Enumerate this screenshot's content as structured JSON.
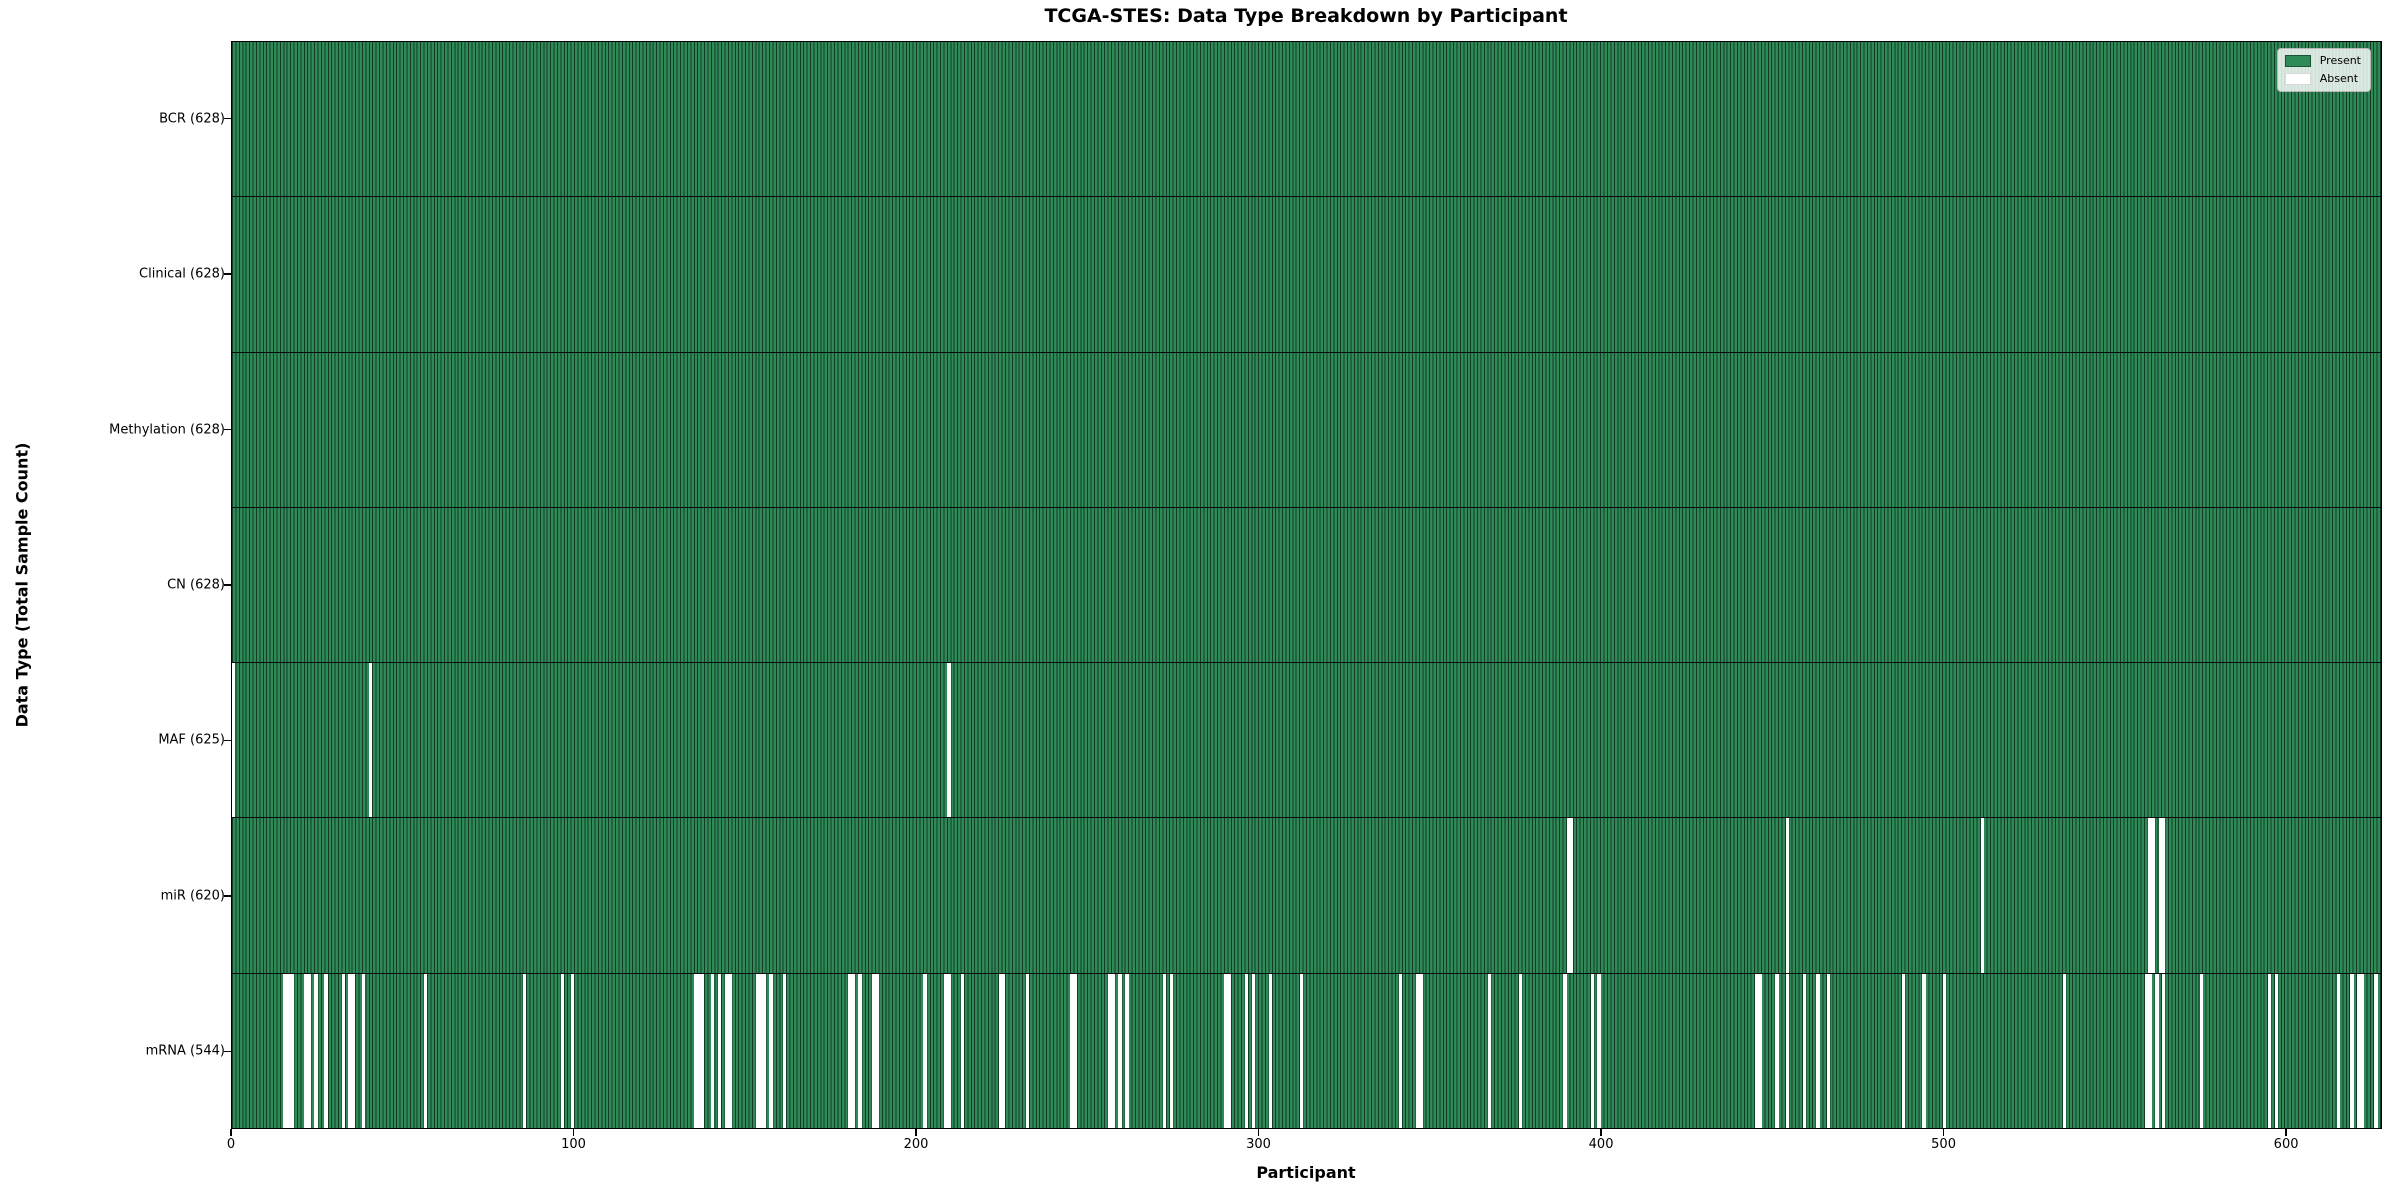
{
  "chart_data": {
    "type": "heatmap",
    "title": "TCGA-STES: Data Type Breakdown by Participant",
    "xlabel": "Participant",
    "ylabel": "Data Type (Total Sample Count)",
    "x_ticks": [
      0,
      100,
      200,
      300,
      400,
      500,
      600
    ],
    "x_range": [
      0,
      628
    ],
    "n_participants": 628,
    "grid": false,
    "legend_position": "upper-right",
    "colors": {
      "present": "#2E8B57",
      "bar_edge": "#123B26",
      "absent": "#FFFFFF",
      "background": "#FFFFFF",
      "text": "#000000"
    },
    "legend": [
      {
        "label": "Present",
        "color": "#2E8B57"
      },
      {
        "label": "Absent",
        "color": "#FFFFFF"
      }
    ],
    "rows": [
      {
        "label": "BCR (628)",
        "data_type": "BCR",
        "present_count": 628,
        "absent_participants": []
      },
      {
        "label": "Clinical (628)",
        "data_type": "Clinical",
        "present_count": 628,
        "absent_participants": []
      },
      {
        "label": "Methylation (628)",
        "data_type": "Methylation",
        "present_count": 628,
        "absent_participants": []
      },
      {
        "label": "CN (628)",
        "data_type": "CN",
        "present_count": 628,
        "absent_participants": []
      },
      {
        "label": "MAF (625)",
        "data_type": "MAF",
        "present_count": 625,
        "absent_participants": [
          0,
          40,
          209
        ]
      },
      {
        "label": "miR (620)",
        "data_type": "miR",
        "present_count": 620,
        "absent_participants": [
          390,
          391,
          454,
          511,
          560,
          561,
          563,
          564
        ]
      },
      {
        "label": "mRNA (544)",
        "data_type": "mRNA",
        "present_count": 544,
        "absent_participants": [
          15,
          16,
          17,
          21,
          22,
          24,
          27,
          32,
          34,
          35,
          38,
          56,
          85,
          96,
          99,
          135,
          136,
          137,
          140,
          142,
          144,
          145,
          153,
          154,
          155,
          157,
          161,
          180,
          181,
          183,
          187,
          188,
          202,
          208,
          209,
          213,
          224,
          225,
          232,
          245,
          246,
          256,
          257,
          259,
          261,
          272,
          274,
          290,
          291,
          296,
          298,
          303,
          312,
          341,
          346,
          347,
          367,
          376,
          389,
          397,
          399,
          445,
          446,
          451,
          454,
          459,
          463,
          466,
          488,
          494,
          500,
          535,
          559,
          560,
          562,
          564,
          575,
          595,
          597,
          615,
          619,
          621,
          622,
          626
        ]
      }
    ]
  }
}
